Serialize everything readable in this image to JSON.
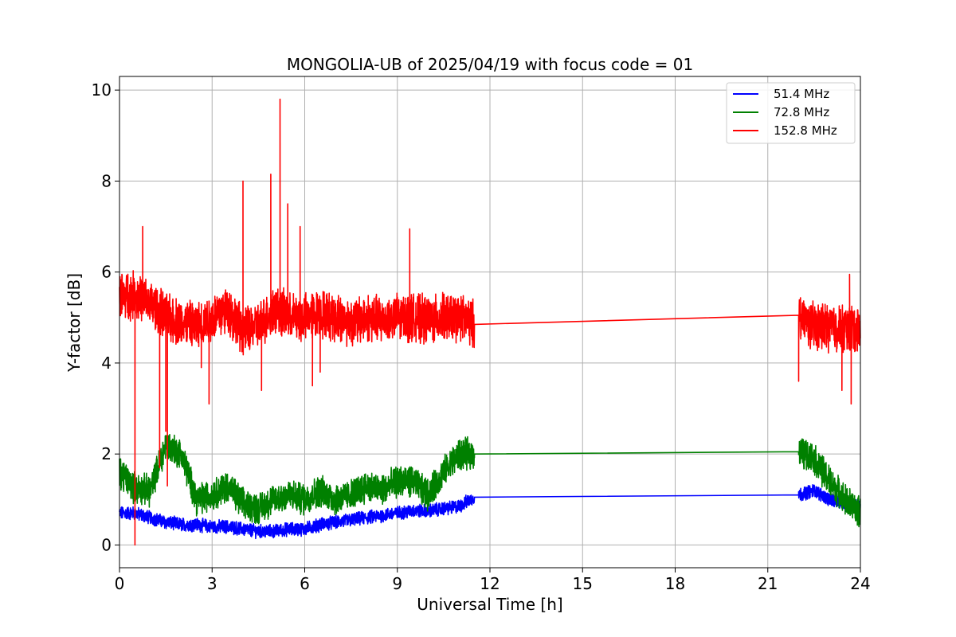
{
  "chart_data": {
    "type": "line",
    "title": "MONGOLIA-UB of 2025/04/19 with focus code = 01",
    "xlabel": "Universal Time [h]",
    "ylabel": "Y-factor [dB]",
    "xlim": [
      0,
      24
    ],
    "ylim": [
      -0.5,
      10.3
    ],
    "xticks": [
      0,
      3,
      6,
      9,
      12,
      15,
      18,
      21,
      24
    ],
    "yticks": [
      0,
      2,
      4,
      6,
      8,
      10
    ],
    "grid": true,
    "legend_position": "top-right",
    "series": [
      {
        "name": "  51.4 MHz",
        "color": "#0000ff",
        "x": [
          0,
          0.5,
          1.0,
          1.5,
          2.0,
          2.5,
          3.0,
          3.5,
          4.0,
          4.5,
          5.0,
          5.5,
          6.0,
          6.5,
          7.0,
          7.5,
          8.0,
          8.5,
          9.0,
          9.5,
          10.0,
          10.5,
          11.0,
          11.5,
          22.0,
          22.5,
          23.0,
          23.5,
          24.0
        ],
        "values": [
          0.7,
          0.7,
          0.6,
          0.5,
          0.45,
          0.45,
          0.4,
          0.4,
          0.35,
          0.3,
          0.3,
          0.35,
          0.35,
          0.45,
          0.5,
          0.55,
          0.6,
          0.65,
          0.7,
          0.75,
          0.75,
          0.8,
          0.85,
          1.05,
          1.1,
          1.2,
          1.0,
          0.9,
          0.85
        ],
        "noise": 0.13
      },
      {
        "name": "  72.8 MHz",
        "color": "#008000",
        "x": [
          0,
          0.5,
          1.0,
          1.5,
          2.0,
          2.5,
          3.0,
          3.5,
          4.0,
          4.5,
          5.0,
          5.5,
          6.0,
          6.5,
          7.0,
          7.5,
          8.0,
          8.5,
          9.0,
          9.5,
          10.0,
          10.5,
          11.0,
          11.5,
          22.0,
          22.5,
          23.0,
          23.5,
          24.0
        ],
        "values": [
          1.6,
          1.25,
          1.2,
          2.2,
          2.0,
          1.0,
          1.1,
          1.3,
          0.9,
          0.8,
          1.0,
          1.1,
          1.0,
          1.2,
          1.0,
          1.1,
          1.3,
          1.2,
          1.4,
          1.4,
          1.1,
          1.6,
          2.0,
          2.0,
          2.05,
          1.9,
          1.4,
          1.0,
          0.7
        ],
        "noise": 0.3
      },
      {
        "name": "152.8 MHz",
        "color": "#ff0000",
        "x": [
          0,
          0.5,
          1.0,
          1.5,
          2.0,
          2.5,
          3.0,
          3.5,
          4.0,
          4.5,
          5.0,
          5.5,
          6.0,
          6.5,
          7.0,
          7.5,
          8.0,
          8.5,
          9.0,
          9.5,
          10.0,
          10.5,
          11.0,
          11.5,
          22.0,
          22.5,
          23.0,
          23.5,
          24.0
        ],
        "values": [
          5.5,
          5.5,
          5.3,
          5.0,
          4.9,
          4.8,
          5.0,
          5.2,
          4.7,
          4.8,
          5.2,
          5.0,
          5.0,
          5.1,
          5.0,
          4.9,
          5.0,
          4.95,
          5.0,
          5.0,
          4.95,
          5.0,
          5.0,
          4.85,
          5.05,
          4.8,
          4.8,
          4.75,
          4.75
        ],
        "noise": 0.45,
        "spikes": [
          [
            0.5,
            0.0
          ],
          [
            0.75,
            7.0
          ],
          [
            1.3,
            1.7
          ],
          [
            1.5,
            2.5
          ],
          [
            1.55,
            1.3
          ],
          [
            2.65,
            3.9
          ],
          [
            2.9,
            3.1
          ],
          [
            4.0,
            8.0
          ],
          [
            4.6,
            3.4
          ],
          [
            4.9,
            8.15
          ],
          [
            5.2,
            9.8
          ],
          [
            5.45,
            7.5
          ],
          [
            5.85,
            7.0
          ],
          [
            6.25,
            3.5
          ],
          [
            6.5,
            3.8
          ],
          [
            9.4,
            6.95
          ],
          [
            22.0,
            3.6
          ],
          [
            23.4,
            3.4
          ],
          [
            23.65,
            5.95
          ],
          [
            23.7,
            3.1
          ]
        ]
      }
    ],
    "gap": [
      11.5,
      22.0
    ]
  }
}
